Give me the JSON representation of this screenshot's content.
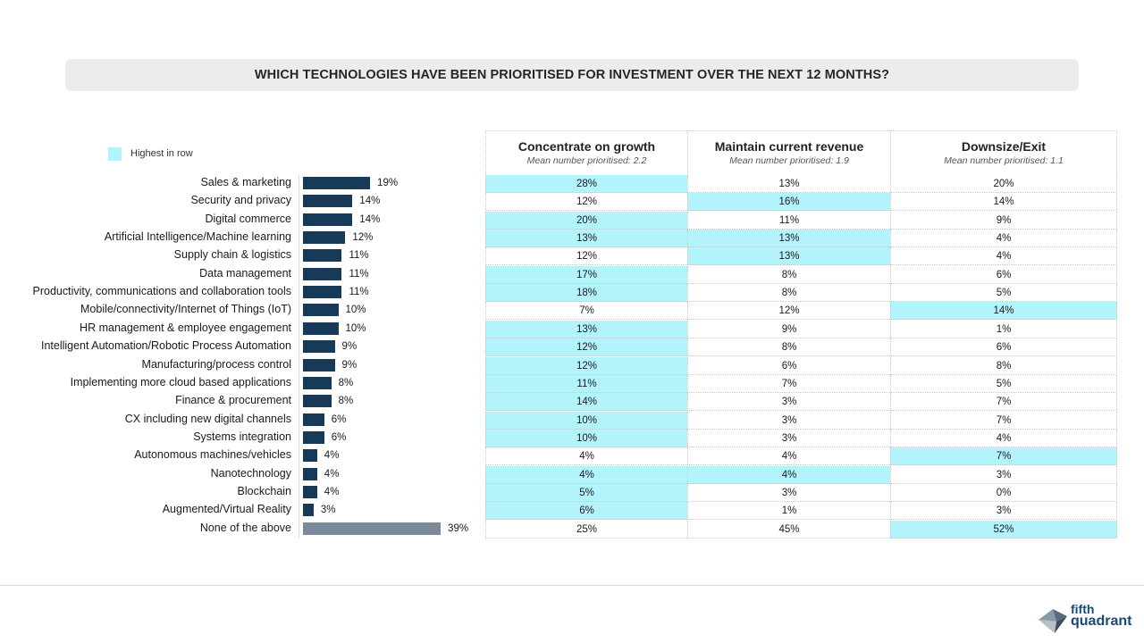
{
  "title": "WHICH TECHNOLOGIES HAVE BEEN PRIORITISED FOR INVESTMENT OVER THE NEXT 12 MONTHS?",
  "legend": {
    "label": "Highest in row",
    "color": "#b3f3fb"
  },
  "columns": [
    {
      "heading": "Concentrate on growth",
      "sub": "Mean number prioritised: 2.2"
    },
    {
      "heading": "Maintain current revenue",
      "sub": "Mean number prioritised: 1.9"
    },
    {
      "heading": "Downsize/Exit",
      "sub": "Mean number prioritised: 1.1"
    }
  ],
  "colors": {
    "bar": "#173a58",
    "bar_none": "#7b8a9b",
    "highlight": "#b3f3fb"
  },
  "chart_data": {
    "type": "bar",
    "title": "WHICH TECHNOLOGIES HAVE BEEN PRIORITISED FOR INVESTMENT OVER THE NEXT 12 MONTHS?",
    "categories": [
      "Sales & marketing",
      "Security and privacy",
      "Digital commerce",
      "Artificial Intelligence/Machine learning",
      "Supply chain & logistics",
      "Data management",
      "Productivity, communications and collaboration tools",
      "Mobile/connectivity/Internet of Things (IoT)",
      "HR management & employee engagement",
      "Intelligent Automation/Robotic Process Automation",
      "Manufacturing/process control",
      "Implementing more cloud based applications",
      "Finance & procurement",
      "CX including new digital channels",
      "Systems integration",
      "Autonomous machines/vehicles",
      "Nanotechnology",
      "Blockchain",
      "Augmented/Virtual Reality",
      "None of the above"
    ],
    "values": [
      19,
      14,
      14,
      12,
      11,
      11,
      11,
      10,
      10,
      9,
      9,
      8,
      8,
      6,
      6,
      4,
      4,
      4,
      3,
      39
    ],
    "value_labels": [
      "19%",
      "14%",
      "14%",
      "12%",
      "11%",
      "11%",
      "11%",
      "10%",
      "10%",
      "9%",
      "9%",
      "8%",
      "8%",
      "6%",
      "6%",
      "4%",
      "4%",
      "4%",
      "3%",
      "39%"
    ],
    "xlim": [
      0,
      100
    ],
    "table": {
      "columns": [
        "Concentrate on growth",
        "Maintain current revenue",
        "Downsize/Exit"
      ],
      "rows": [
        {
          "values": [
            "28%",
            "13%",
            "20%"
          ],
          "highlight": [
            0
          ]
        },
        {
          "values": [
            "12%",
            "16%",
            "14%"
          ],
          "highlight": [
            1
          ]
        },
        {
          "values": [
            "20%",
            "11%",
            "9%"
          ],
          "highlight": [
            0
          ]
        },
        {
          "values": [
            "13%",
            "13%",
            "4%"
          ],
          "highlight": [
            0,
            1
          ]
        },
        {
          "values": [
            "12%",
            "13%",
            "4%"
          ],
          "highlight": [
            1
          ]
        },
        {
          "values": [
            "17%",
            "8%",
            "6%"
          ],
          "highlight": [
            0
          ]
        },
        {
          "values": [
            "18%",
            "8%",
            "5%"
          ],
          "highlight": [
            0
          ]
        },
        {
          "values": [
            "7%",
            "12%",
            "14%"
          ],
          "highlight": [
            2
          ]
        },
        {
          "values": [
            "13%",
            "9%",
            "1%"
          ],
          "highlight": [
            0
          ]
        },
        {
          "values": [
            "12%",
            "8%",
            "6%"
          ],
          "highlight": [
            0
          ]
        },
        {
          "values": [
            "12%",
            "6%",
            "8%"
          ],
          "highlight": [
            0
          ]
        },
        {
          "values": [
            "11%",
            "7%",
            "5%"
          ],
          "highlight": [
            0
          ]
        },
        {
          "values": [
            "14%",
            "3%",
            "7%"
          ],
          "highlight": [
            0
          ]
        },
        {
          "values": [
            "10%",
            "3%",
            "7%"
          ],
          "highlight": [
            0
          ]
        },
        {
          "values": [
            "10%",
            "3%",
            "4%"
          ],
          "highlight": [
            0
          ]
        },
        {
          "values": [
            "4%",
            "4%",
            "7%"
          ],
          "highlight": [
            2
          ]
        },
        {
          "values": [
            "4%",
            "4%",
            "3%"
          ],
          "highlight": [
            0,
            1
          ]
        },
        {
          "values": [
            "5%",
            "3%",
            "0%"
          ],
          "highlight": [
            0
          ]
        },
        {
          "values": [
            "6%",
            "1%",
            "3%"
          ],
          "highlight": [
            0
          ]
        },
        {
          "values": [
            "25%",
            "45%",
            "52%"
          ],
          "highlight": [
            2
          ]
        }
      ]
    }
  },
  "logo": {
    "line1": "fifth",
    "line2": "quadrant"
  }
}
